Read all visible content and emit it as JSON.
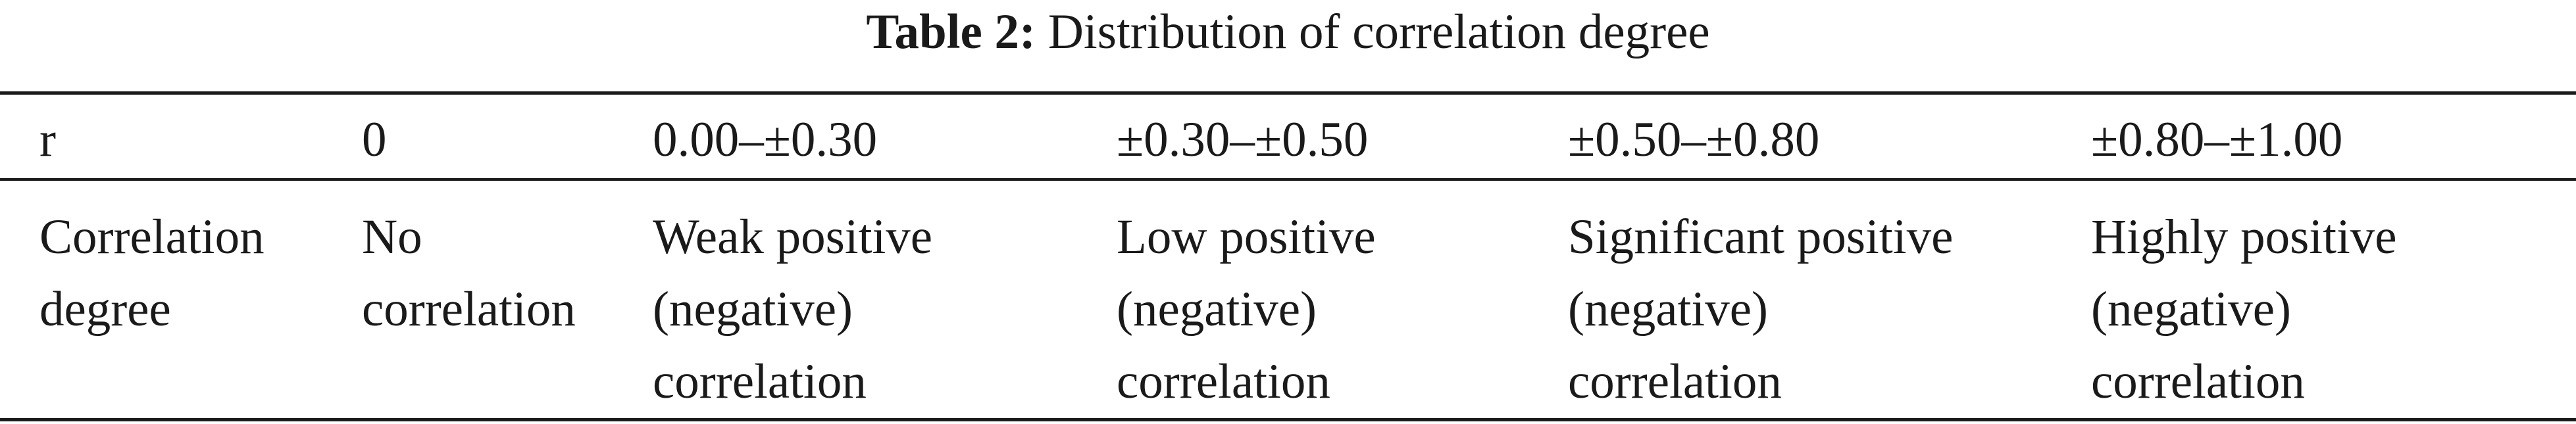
{
  "caption": {
    "label": "Table 2:",
    "text": "Distribution of correlation degree"
  },
  "table": {
    "header": [
      "r",
      "0",
      "0.00–±0.30",
      "±0.30–±0.50",
      "±0.50–±0.80",
      "±0.80–±1.00"
    ],
    "row": [
      [
        "Correlation",
        "degree"
      ],
      [
        "No",
        "correlation"
      ],
      [
        "Weak positive",
        "(negative)",
        "correlation"
      ],
      [
        "Low positive",
        "(negative)",
        "correlation"
      ],
      [
        "Significant positive",
        "(negative)",
        "correlation"
      ],
      [
        "Highly positive",
        "(negative)",
        "correlation"
      ]
    ]
  }
}
